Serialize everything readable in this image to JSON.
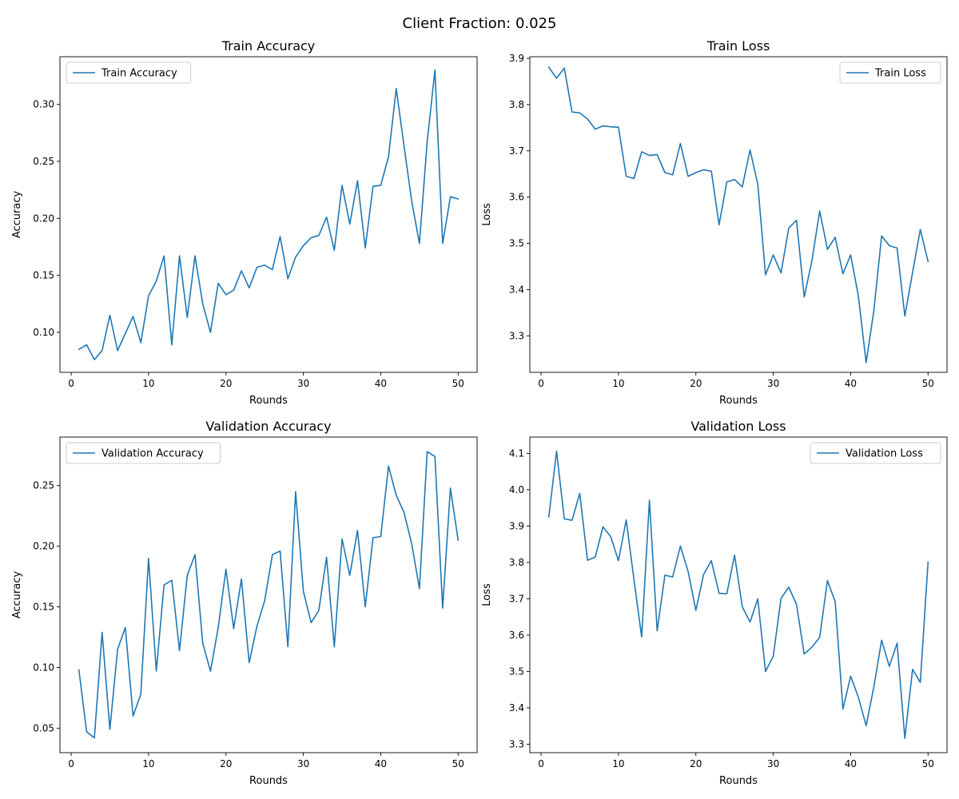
{
  "figure": {
    "suptitle": "Client Fraction: 0.025"
  },
  "colors": {
    "line": "#1f77b4",
    "axis": "#000000",
    "legend_border": "#cccccc",
    "background": "#ffffff"
  },
  "chart_data": [
    {
      "type": "line",
      "title": "Train Accuracy",
      "xlabel": "Rounds",
      "ylabel": "Accuracy",
      "xlim": [
        -1.45,
        52.45
      ],
      "ylim": [
        0.0649,
        0.3418
      ],
      "xticks": [
        0,
        10,
        20,
        30,
        40,
        50
      ],
      "yticks": [
        0.1,
        0.15,
        0.2,
        0.25,
        0.3
      ],
      "ytick_labels": [
        "0.10",
        "0.15",
        "0.20",
        "0.25",
        "0.30"
      ],
      "legend_position": "upper left",
      "grid": false,
      "series": [
        {
          "name": "Train Accuracy",
          "x": [
            1,
            2,
            3,
            4,
            5,
            6,
            7,
            8,
            9,
            10,
            11,
            12,
            13,
            14,
            15,
            16,
            17,
            18,
            19,
            20,
            21,
            22,
            23,
            24,
            25,
            26,
            27,
            28,
            29,
            30,
            31,
            32,
            33,
            34,
            35,
            36,
            37,
            38,
            39,
            40,
            41,
            42,
            43,
            44,
            45,
            46,
            47,
            48,
            49,
            50
          ],
          "y": [
            0.085,
            0.089,
            0.076,
            0.084,
            0.115,
            0.084,
            0.099,
            0.114,
            0.091,
            0.132,
            0.145,
            0.167,
            0.089,
            0.167,
            0.113,
            0.167,
            0.125,
            0.1,
            0.143,
            0.133,
            0.137,
            0.154,
            0.139,
            0.157,
            0.159,
            0.155,
            0.184,
            0.147,
            0.166,
            0.176,
            0.183,
            0.185,
            0.201,
            0.172,
            0.229,
            0.195,
            0.233,
            0.174,
            0.228,
            0.229,
            0.254,
            0.314,
            0.264,
            0.215,
            0.178,
            0.267,
            0.33,
            0.178,
            0.219,
            0.217
          ]
        }
      ]
    },
    {
      "type": "line",
      "title": "Train Loss",
      "xlabel": "Rounds",
      "ylabel": "Loss",
      "xlim": [
        -1.45,
        52.45
      ],
      "ylim": [
        3.2211,
        3.9035
      ],
      "xticks": [
        0,
        10,
        20,
        30,
        40,
        50
      ],
      "yticks": [
        3.3,
        3.4,
        3.5,
        3.6,
        3.7,
        3.8,
        3.9
      ],
      "ytick_labels": [
        "3.3",
        "3.4",
        "3.5",
        "3.6",
        "3.7",
        "3.8",
        "3.9"
      ],
      "legend_position": "upper right",
      "grid": false,
      "series": [
        {
          "name": "Train Loss",
          "x": [
            1,
            2,
            3,
            4,
            5,
            6,
            7,
            8,
            9,
            10,
            11,
            12,
            13,
            14,
            15,
            16,
            17,
            18,
            19,
            20,
            21,
            22,
            23,
            24,
            25,
            26,
            27,
            28,
            29,
            30,
            31,
            32,
            33,
            34,
            35,
            36,
            37,
            38,
            39,
            40,
            41,
            42,
            43,
            44,
            45,
            46,
            47,
            48,
            49,
            50
          ],
          "y": [
            3.881,
            3.857,
            3.879,
            3.784,
            3.782,
            3.769,
            3.747,
            3.754,
            3.752,
            3.751,
            3.645,
            3.64,
            3.698,
            3.69,
            3.692,
            3.653,
            3.648,
            3.716,
            3.645,
            3.653,
            3.659,
            3.656,
            3.54,
            3.633,
            3.638,
            3.622,
            3.702,
            3.628,
            3.432,
            3.475,
            3.436,
            3.533,
            3.55,
            3.384,
            3.463,
            3.57,
            3.487,
            3.513,
            3.434,
            3.475,
            3.386,
            3.242,
            3.355,
            3.516,
            3.495,
            3.49,
            3.343,
            3.437,
            3.53,
            3.461
          ]
        }
      ]
    },
    {
      "type": "line",
      "title": "Validation Accuracy",
      "xlabel": "Rounds",
      "ylabel": "Accuracy",
      "xlim": [
        -1.45,
        52.45
      ],
      "ylim": [
        0.0298,
        0.29
      ],
      "xticks": [
        0,
        10,
        20,
        30,
        40,
        50
      ],
      "yticks": [
        0.05,
        0.1,
        0.15,
        0.2,
        0.25
      ],
      "ytick_labels": [
        "0.05",
        "0.10",
        "0.15",
        "0.20",
        "0.25"
      ],
      "legend_position": "upper left",
      "grid": false,
      "series": [
        {
          "name": "Validation Accuracy",
          "x": [
            1,
            2,
            3,
            4,
            5,
            6,
            7,
            8,
            9,
            10,
            11,
            12,
            13,
            14,
            15,
            16,
            17,
            18,
            19,
            20,
            21,
            22,
            23,
            24,
            25,
            26,
            27,
            28,
            29,
            30,
            31,
            32,
            33,
            34,
            35,
            36,
            37,
            38,
            39,
            40,
            41,
            42,
            43,
            44,
            45,
            46,
            47,
            48,
            49,
            50
          ],
          "y": [
            0.098,
            0.047,
            0.042,
            0.129,
            0.049,
            0.115,
            0.133,
            0.06,
            0.078,
            0.19,
            0.097,
            0.168,
            0.172,
            0.114,
            0.176,
            0.193,
            0.12,
            0.097,
            0.133,
            0.181,
            0.132,
            0.173,
            0.104,
            0.134,
            0.155,
            0.193,
            0.196,
            0.117,
            0.245,
            0.163,
            0.137,
            0.147,
            0.191,
            0.117,
            0.206,
            0.176,
            0.213,
            0.15,
            0.207,
            0.208,
            0.266,
            0.242,
            0.228,
            0.202,
            0.165,
            0.278,
            0.274,
            0.149,
            0.248,
            0.205
          ]
        }
      ]
    },
    {
      "type": "line",
      "title": "Validation Loss",
      "xlabel": "Rounds",
      "ylabel": "Loss",
      "xlim": [
        -1.45,
        52.45
      ],
      "ylim": [
        3.2767,
        4.145
      ],
      "xticks": [
        0,
        10,
        20,
        30,
        40,
        50
      ],
      "yticks": [
        3.3,
        3.4,
        3.5,
        3.6,
        3.7,
        3.8,
        3.9,
        4.0,
        4.1
      ],
      "ytick_labels": [
        "3.3",
        "3.4",
        "3.5",
        "3.6",
        "3.7",
        "3.8",
        "3.9",
        "4.0",
        "4.1"
      ],
      "legend_position": "upper right",
      "grid": false,
      "series": [
        {
          "name": "Validation Loss",
          "x": [
            1,
            2,
            3,
            4,
            5,
            6,
            7,
            8,
            9,
            10,
            11,
            12,
            13,
            14,
            15,
            16,
            17,
            18,
            19,
            20,
            21,
            22,
            23,
            24,
            25,
            26,
            27,
            28,
            29,
            30,
            31,
            32,
            33,
            34,
            35,
            36,
            37,
            38,
            39,
            40,
            41,
            42,
            43,
            44,
            45,
            46,
            47,
            48,
            49,
            50
          ],
          "y": [
            3.925,
            4.106,
            3.92,
            3.916,
            3.99,
            3.806,
            3.815,
            3.898,
            3.871,
            3.805,
            3.917,
            3.753,
            3.595,
            3.971,
            3.612,
            3.765,
            3.76,
            3.845,
            3.775,
            3.668,
            3.767,
            3.805,
            3.715,
            3.714,
            3.82,
            3.678,
            3.636,
            3.7,
            3.5,
            3.542,
            3.701,
            3.732,
            3.685,
            3.548,
            3.567,
            3.594,
            3.75,
            3.692,
            3.397,
            3.487,
            3.429,
            3.351,
            3.458,
            3.586,
            3.514,
            3.578,
            3.316,
            3.506,
            3.47,
            3.801
          ]
        }
      ]
    }
  ]
}
